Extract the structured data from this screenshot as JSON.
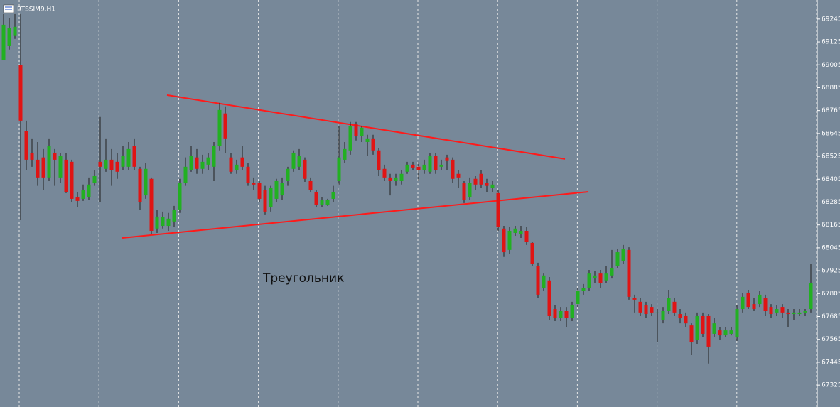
{
  "chart_data": {
    "type": "candlestick",
    "title": "RTSSIM9,H1",
    "annotation": "Треугольник",
    "up_color": "#22b022",
    "down_color": "#e01414",
    "wick_color": "#202020",
    "ylim": [
      67210,
      69345
    ],
    "yticks": [
      69245,
      69125,
      69005,
      68885,
      68765,
      68645,
      68525,
      68405,
      68285,
      68165,
      68045,
      67925,
      67805,
      67685,
      67565,
      67445,
      67325
    ],
    "trendlines": [
      {
        "color": "#ff1a1a",
        "points": [
          [
            28.75,
            68846
          ],
          [
            98.75,
            68511
          ]
        ]
      },
      {
        "color": "#ff1a1a",
        "points": [
          [
            20.875,
            68097
          ],
          [
            102.875,
            68339
          ]
        ]
      }
    ],
    "open": [
      69029,
      69103,
      69160,
      69003,
      68656,
      68544,
      68507,
      68519,
      68414,
      68544,
      68414,
      68507,
      68496,
      68309,
      68302,
      68309,
      68384,
      68496,
      68459,
      68507,
      68496,
      68470,
      68470,
      68581,
      68459,
      68320,
      68407,
      68146,
      68160,
      68160,
      68183,
      68246,
      68384,
      68451,
      68519,
      68459,
      68481,
      68470,
      68581,
      68750,
      68519,
      68451,
      68519,
      68470,
      68384,
      68384,
      68347,
      68258,
      68302,
      68320,
      68395,
      68459,
      68470,
      68507,
      68395,
      68339,
      68272,
      68272,
      68302,
      68395,
      68507,
      68556,
      68694,
      68630,
      68600,
      68619,
      68556,
      68459,
      68414,
      68395,
      68395,
      68444,
      68481,
      68470,
      68451,
      68444,
      68526,
      68470,
      68519,
      68507,
      68433,
      68384,
      68309,
      68407,
      68433,
      68384,
      68358,
      68332,
      68146,
      68034,
      68123,
      68116,
      68134,
      68071,
      67948,
      67836,
      67874,
      67724,
      67676,
      67713,
      67676,
      67750,
      67818,
      67836,
      67884,
      67910,
      67874,
      67900,
      67948,
      67974,
      68034,
      67780,
      67762,
      67743,
      67735,
      67702,
      67668,
      67713,
      67762,
      67698,
      67687,
      67638,
      67564,
      67687,
      67687,
      67594,
      67612,
      67586,
      67594,
      67575,
      67724,
      67810,
      67750,
      67750,
      67780,
      67735,
      67706,
      67735,
      67706,
      67698,
      67698,
      67706,
      67724
    ],
    "high": [
      69271,
      69252,
      69271,
      69271,
      68712,
      68619,
      68600,
      68563,
      68619,
      68563,
      68544,
      68544,
      68507,
      68339,
      68377,
      68414,
      68451,
      68731,
      68619,
      68563,
      68544,
      68581,
      68600,
      68619,
      68470,
      68489,
      68414,
      68246,
      68235,
      68228,
      68265,
      68407,
      68519,
      68581,
      68563,
      68533,
      68544,
      68600,
      68805,
      68787,
      68544,
      68507,
      68581,
      68489,
      68414,
      68395,
      68370,
      68370,
      68407,
      68414,
      68470,
      68556,
      68563,
      68519,
      68414,
      68347,
      68309,
      68302,
      68370,
      68682,
      68600,
      68705,
      68705,
      68682,
      68638,
      68638,
      68570,
      68481,
      68433,
      68433,
      68451,
      68496,
      68496,
      68496,
      68507,
      68544,
      68544,
      68507,
      68533,
      68519,
      68451,
      68395,
      68414,
      68421,
      68451,
      68407,
      68395,
      68347,
      68160,
      68153,
      68160,
      68160,
      68153,
      68078,
      67967,
      67910,
      67892,
      67743,
      67735,
      67735,
      67762,
      67836,
      67855,
      67929,
      67922,
      67929,
      67948,
      68034,
      68041,
      68060,
      68048,
      67799,
      67780,
      67762,
      67750,
      67724,
      67735,
      67825,
      67780,
      67724,
      67706,
      67649,
      67706,
      67706,
      67698,
      67676,
      67631,
      67631,
      67631,
      67743,
      67810,
      67825,
      67780,
      67818,
      67799,
      67750,
      67743,
      67750,
      67724,
      67724,
      67724,
      67724,
      67959
    ],
    "low": [
      69029,
      69085,
      69141,
      68190,
      68451,
      68470,
      68370,
      68347,
      68395,
      68370,
      68384,
      68332,
      68283,
      68258,
      68291,
      68295,
      68370,
      68283,
      68444,
      68370,
      68407,
      68451,
      68451,
      68451,
      68246,
      68302,
      68116,
      68123,
      68146,
      68134,
      68153,
      68228,
      68370,
      68444,
      68433,
      68433,
      68451,
      68395,
      68556,
      68544,
      68433,
      68433,
      68451,
      68370,
      68347,
      68283,
      68220,
      68235,
      68283,
      68295,
      68370,
      68444,
      68451,
      68391,
      68339,
      68258,
      68258,
      68265,
      68283,
      68377,
      68489,
      68533,
      68608,
      68600,
      68526,
      68533,
      68421,
      68395,
      68320,
      68370,
      68377,
      68433,
      68451,
      68395,
      68433,
      68433,
      68433,
      68451,
      68451,
      68384,
      68358,
      68280,
      68295,
      68347,
      68358,
      68339,
      68339,
      68134,
      67997,
      68011,
      68108,
      68097,
      68060,
      67948,
      67780,
      67818,
      67668,
      67661,
      67661,
      67631,
      67661,
      67735,
      67799,
      67818,
      67862,
      67836,
      67862,
      67884,
      67937,
      67959,
      67773,
      67706,
      67687,
      67676,
      67687,
      67549,
      67649,
      67698,
      67687,
      67649,
      67631,
      67482,
      67538,
      67575,
      67438,
      67575,
      67564,
      67575,
      67586,
      67557,
      67706,
      67724,
      67713,
      67735,
      67687,
      67676,
      67687,
      67676,
      67631,
      67668,
      67687,
      67687,
      67706
    ],
    "close": [
      69215,
      69197,
      69204,
      68712,
      68507,
      68507,
      68414,
      68414,
      68581,
      68507,
      68526,
      68339,
      68302,
      68291,
      68347,
      68377,
      68421,
      68470,
      68507,
      68451,
      68444,
      68526,
      68563,
      68470,
      68283,
      68459,
      68134,
      68209,
      68205,
      68198,
      68243,
      68384,
      68470,
      68526,
      68459,
      68496,
      68519,
      68581,
      68768,
      68619,
      68444,
      68481,
      68470,
      68384,
      68377,
      68302,
      68235,
      68358,
      68395,
      68384,
      68459,
      68544,
      68526,
      68407,
      68347,
      68272,
      68295,
      68295,
      68339,
      68519,
      68563,
      68682,
      68630,
      68675,
      68619,
      68556,
      68451,
      68414,
      68395,
      68414,
      68433,
      68481,
      68466,
      68451,
      68481,
      68526,
      68451,
      68481,
      68504,
      68407,
      68414,
      68295,
      68384,
      68377,
      68377,
      68370,
      68377,
      68153,
      68022,
      68134,
      68146,
      68134,
      68078,
      67959,
      67799,
      67900,
      67687,
      67676,
      67713,
      67676,
      67743,
      67818,
      67836,
      67910,
      67900,
      67862,
      67910,
      67937,
      68022,
      68041,
      67788,
      67773,
      67706,
      67698,
      67706,
      67706,
      67713,
      67780,
      67706,
      67676,
      67649,
      67549,
      67687,
      67594,
      67527,
      67649,
      67586,
      67612,
      67612,
      67724,
      67788,
      67735,
      67724,
      67799,
      67713,
      67698,
      67724,
      67706,
      67698,
      67706,
      67706,
      67713,
      67862
    ]
  }
}
